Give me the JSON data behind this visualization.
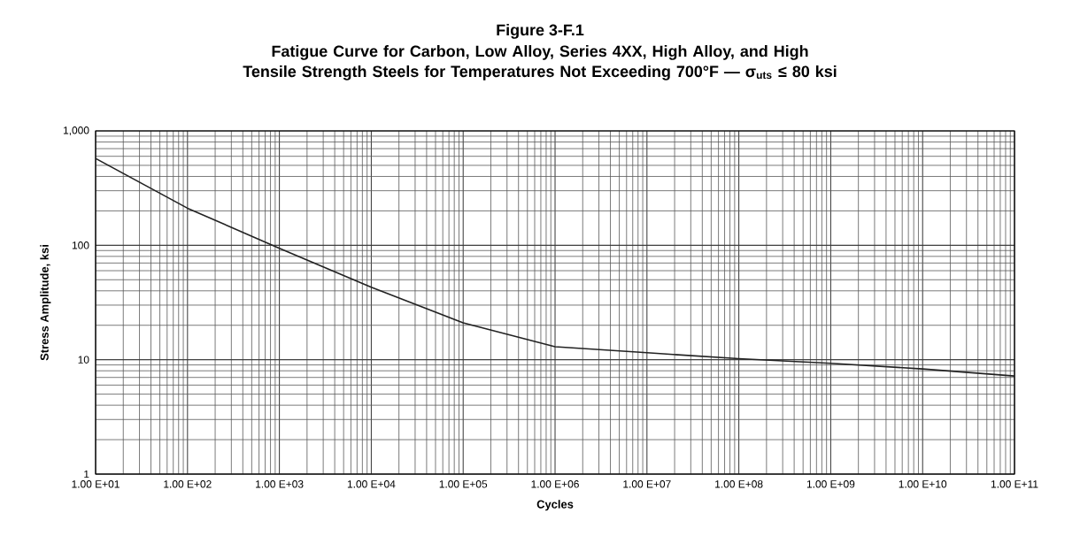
{
  "chart_data": {
    "type": "line",
    "title": "Figure 3-F.1",
    "subtitle": "Fatigue Curve for Carbon, Low Alloy, Series 4XX, High Alloy, and High Tensile Strength Steels for Temperatures Not Exceeding 700°F — σ$_{uts}$ ≤ 80 ksi",
    "xlabel": "Cycles",
    "ylabel": "Stress Amplitude, ksi",
    "categories": [
      "1.00 E+01",
      "1.00 E+02",
      "1.00 E+03",
      "1.00 E+04",
      "1.00 E+05",
      "1.00 E+06",
      "1.00 E+07",
      "1.00 E+08",
      "1.00 E+09",
      "1.00 E+10",
      "1.00 E+11"
    ],
    "series": [
      {
        "color": "#222222",
        "values": [
          575,
          211,
          94,
          43,
          21,
          13,
          11.5,
          10.2,
          9.3,
          8.3,
          7.2
        ]
      }
    ],
    "log": "y",
    "grid": true,
    "marker": "none",
    "line_style": "solid",
    "ylim": [
      1,
      1000
    ],
    "yticks": [
      1,
      10,
      100,
      {
        "value": 1000,
        "label": "1,000"
      }
    ]
  }
}
